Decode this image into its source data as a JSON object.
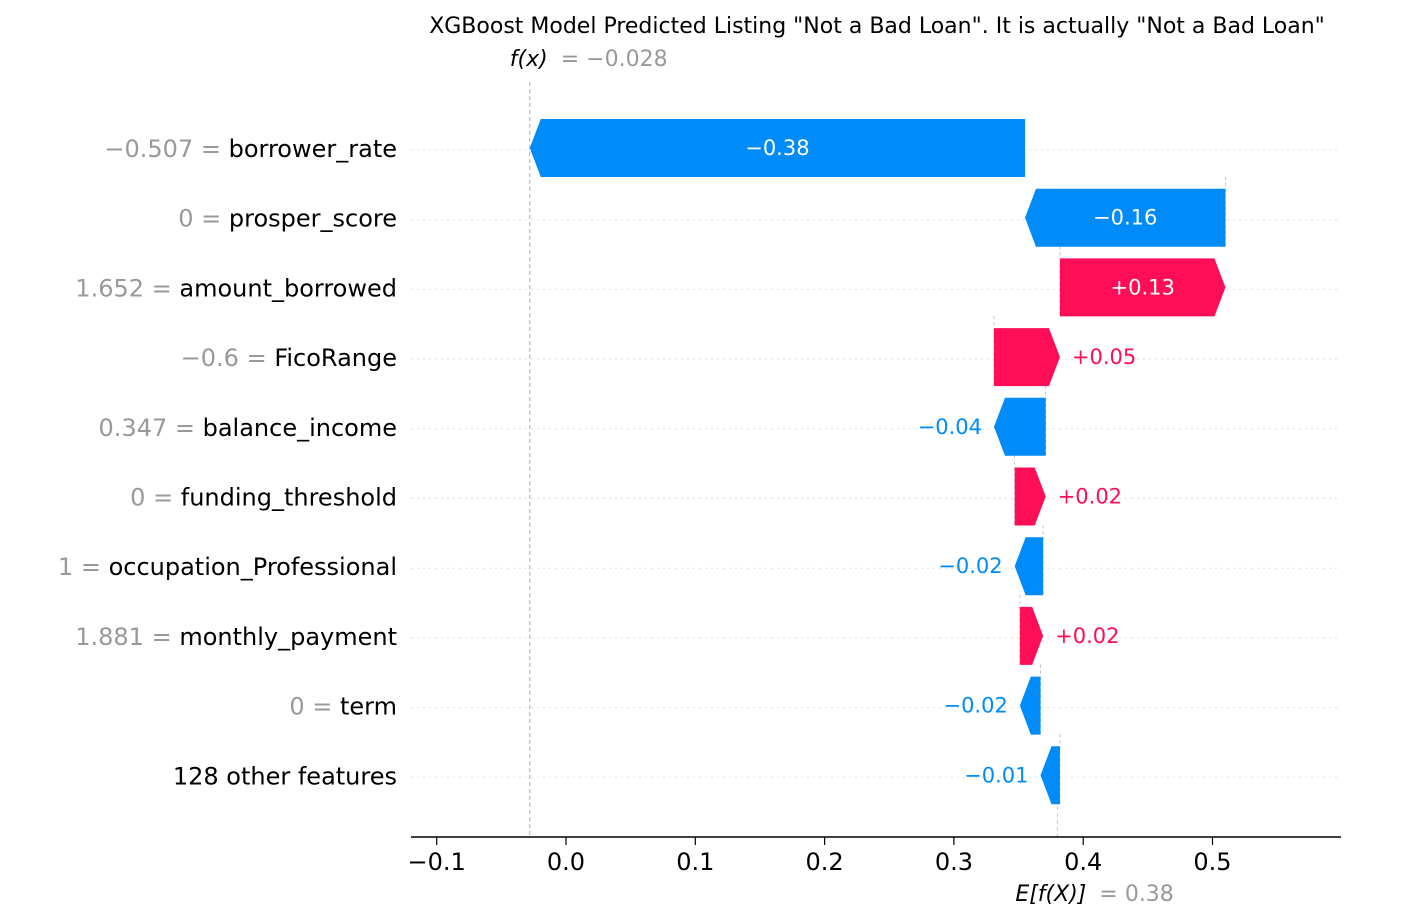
{
  "title": "XGBoost Model Predicted Listing \"Not a Bad Loan\". It is actually \"Not a Bad Loan\"",
  "colors": {
    "positive": "#ff0d57",
    "negative": "#008bfb",
    "muted": "#999999",
    "text": "#000000"
  },
  "chart_data": {
    "type": "waterfall",
    "title": "XGBoost Model Predicted Listing \"Not a Bad Loan\". It is actually \"Not a Bad Loan\"",
    "fx_label": "f(x)",
    "fx_value_text": "= −0.028",
    "fx_value": -0.028,
    "base_label": "E[f(X)]",
    "base_value_text": "= 0.38",
    "base_value": 0.38,
    "xlim": [
      -0.12,
      0.6
    ],
    "xticks": [
      {
        "value": -0.1,
        "label": "−0.1"
      },
      {
        "value": 0.0,
        "label": "0.0"
      },
      {
        "value": 0.1,
        "label": "0.1"
      },
      {
        "value": 0.2,
        "label": "0.2"
      },
      {
        "value": 0.3,
        "label": "0.3"
      },
      {
        "value": 0.4,
        "label": "0.4"
      },
      {
        "value": 0.5,
        "label": "0.5"
      }
    ],
    "features": [
      {
        "value_text": "−0.507",
        "name": "borrower_rate",
        "start": 0.355,
        "end": -0.028,
        "label": "−0.38"
      },
      {
        "value_text": "0",
        "name": "prosper_score",
        "start": 0.51,
        "end": 0.355,
        "label": "−0.16"
      },
      {
        "value_text": "1.652",
        "name": "amount_borrowed",
        "start": 0.382,
        "end": 0.51,
        "label": "+0.13"
      },
      {
        "value_text": "−0.6",
        "name": "FicoRange",
        "start": 0.331,
        "end": 0.382,
        "label": "+0.05"
      },
      {
        "value_text": "0.347",
        "name": "balance_income",
        "start": 0.371,
        "end": 0.331,
        "label": "−0.04"
      },
      {
        "value_text": "0",
        "name": "funding_threshold",
        "start": 0.347,
        "end": 0.371,
        "label": "+0.02"
      },
      {
        "value_text": "1",
        "name": "occupation_Professional",
        "start": 0.369,
        "end": 0.347,
        "label": "−0.02"
      },
      {
        "value_text": "1.881",
        "name": "monthly_payment",
        "start": 0.351,
        "end": 0.369,
        "label": "+0.02"
      },
      {
        "value_text": "0",
        "name": "term",
        "start": 0.367,
        "end": 0.351,
        "label": "−0.02"
      },
      {
        "value_text": "",
        "name": "128 other features",
        "start": 0.382,
        "end": 0.367,
        "label": "−0.01"
      }
    ]
  }
}
